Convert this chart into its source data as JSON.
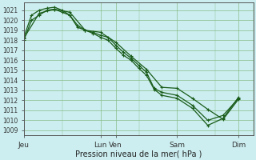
{
  "bg_color": "#cceef0",
  "grid_color": "#88bb88",
  "line_color": "#1a5c1a",
  "xlabel": "Pression niveau de la mer( hPa )",
  "ylim": [
    1008.5,
    1021.8
  ],
  "yticks": [
    1009,
    1010,
    1011,
    1012,
    1013,
    1014,
    1015,
    1016,
    1017,
    1018,
    1019,
    1020,
    1021
  ],
  "xlim": [
    0,
    30
  ],
  "xtick_positions": [
    0,
    10,
    12,
    20,
    28
  ],
  "xtick_labels": [
    "Jeu",
    "Lun",
    "Ven",
    "Sam",
    "Dim"
  ],
  "series1_x": [
    0,
    1,
    2,
    3,
    4,
    5,
    6,
    7,
    8,
    9,
    10,
    11,
    12,
    13,
    14,
    15,
    16,
    17,
    18,
    20,
    22,
    24,
    26,
    28
  ],
  "series1_y": [
    1018.0,
    1020.0,
    1020.5,
    1021.0,
    1021.1,
    1020.8,
    1020.5,
    1019.5,
    1019.0,
    1018.8,
    1018.5,
    1018.3,
    1017.5,
    1016.8,
    1016.2,
    1015.5,
    1014.8,
    1013.2,
    1012.8,
    1012.5,
    1011.5,
    1010.0,
    1010.5,
    1012.2
  ],
  "series2_x": [
    0,
    1,
    2,
    3,
    4,
    5,
    6,
    7,
    8,
    9,
    10,
    11,
    12,
    13,
    14,
    15,
    16,
    17,
    18,
    20,
    22,
    24,
    26,
    28
  ],
  "series2_y": [
    1018.3,
    1020.5,
    1021.0,
    1021.2,
    1021.3,
    1021.0,
    1020.5,
    1019.3,
    1019.0,
    1018.7,
    1018.3,
    1018.0,
    1017.2,
    1016.5,
    1016.0,
    1015.2,
    1014.5,
    1013.1,
    1012.5,
    1012.2,
    1011.2,
    1009.5,
    1010.2,
    1012.3
  ],
  "series3_x": [
    0,
    2,
    4,
    6,
    8,
    10,
    12,
    14,
    16,
    18,
    20,
    22,
    24,
    26,
    28
  ],
  "series3_y": [
    1018.2,
    1020.7,
    1021.1,
    1020.8,
    1019.0,
    1018.8,
    1017.8,
    1016.4,
    1015.1,
    1013.3,
    1013.2,
    1012.2,
    1011.1,
    1010.1,
    1012.1
  ]
}
